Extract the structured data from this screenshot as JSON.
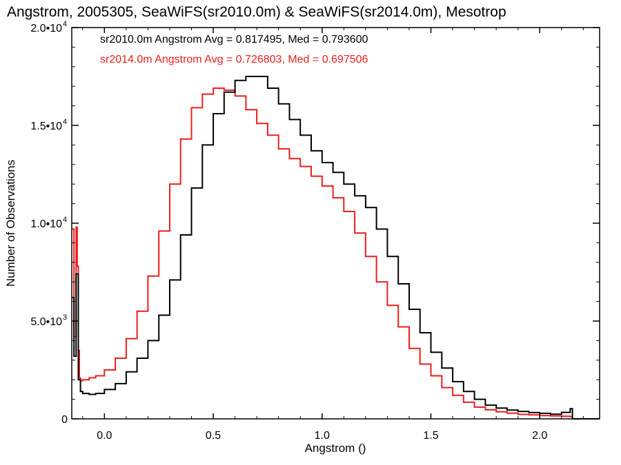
{
  "chart_data": {
    "type": "line",
    "title": "Angstrom, 2005305, SeaWiFS(sr2010.0m) & SeaWiFS(sr2014.0m), Mesotrop",
    "xlabel": "Angstrom ()",
    "ylabel": "Number of Observations",
    "xlim": [
      -0.15,
      2.275
    ],
    "ylim": [
      0,
      20000
    ],
    "x_ticks": [
      {
        "value": 0.0,
        "label": "0.0"
      },
      {
        "value": 0.5,
        "label": "0.5"
      },
      {
        "value": 1.0,
        "label": "1.0"
      },
      {
        "value": 1.5,
        "label": "1.5"
      },
      {
        "value": 2.0,
        "label": "2.0"
      }
    ],
    "y_ticks": [
      {
        "value": 0,
        "mant": "0",
        "exp": ""
      },
      {
        "value": 5000,
        "mant": "5.0•10",
        "exp": "3"
      },
      {
        "value": 10000,
        "mant": "1.0•10",
        "exp": "4"
      },
      {
        "value": 15000,
        "mant": "1.5•10",
        "exp": "4"
      },
      {
        "value": 20000,
        "mant": "2.0•10",
        "exp": "4"
      }
    ],
    "annotations": [
      {
        "text": "sr2010.0m Angstrom Avg = 0.817495, Med = 0.793600",
        "color": "#000000"
      },
      {
        "text": "sr2014.0m Angstrom Avg = 0.726803, Med = 0.697506",
        "color": "#ee1c1c"
      }
    ],
    "series": [
      {
        "color": "#000000",
        "x": [
          -0.15,
          -0.14,
          -0.13,
          -0.12,
          -0.11,
          -0.1,
          -0.07,
          -0.04,
          0.0,
          0.05,
          0.1,
          0.15,
          0.2,
          0.25,
          0.3,
          0.35,
          0.4,
          0.45,
          0.5,
          0.55,
          0.6,
          0.65,
          0.7,
          0.75,
          0.8,
          0.85,
          0.9,
          0.95,
          1.0,
          1.05,
          1.1,
          1.15,
          1.2,
          1.25,
          1.3,
          1.35,
          1.4,
          1.45,
          1.5,
          1.55,
          1.6,
          1.65,
          1.7,
          1.75,
          1.8,
          1.85,
          1.9,
          1.95,
          2.0,
          2.05,
          2.1,
          2.14,
          2.15,
          2.16,
          2.275
        ],
        "y": [
          6200,
          3200,
          7400,
          2000,
          1400,
          1300,
          1250,
          1300,
          1500,
          1800,
          2400,
          3100,
          4000,
          5300,
          7100,
          9400,
          11800,
          14000,
          15600,
          16700,
          17300,
          17500,
          17500,
          16900,
          16100,
          15300,
          14500,
          13700,
          13100,
          12600,
          12000,
          11400,
          10800,
          9700,
          8300,
          6900,
          5600,
          4400,
          3400,
          2600,
          1900,
          1400,
          1000,
          700,
          550,
          450,
          380,
          320,
          280,
          240,
          330,
          520,
          0,
          0,
          0
        ]
      },
      {
        "color": "#ee1c1c",
        "x": [
          -0.15,
          -0.14,
          -0.13,
          -0.125,
          -0.12,
          -0.115,
          -0.11,
          -0.1,
          -0.07,
          -0.04,
          0.0,
          0.05,
          0.1,
          0.15,
          0.2,
          0.25,
          0.3,
          0.35,
          0.4,
          0.45,
          0.5,
          0.55,
          0.6,
          0.65,
          0.7,
          0.75,
          0.8,
          0.85,
          0.9,
          0.95,
          1.0,
          1.05,
          1.1,
          1.15,
          1.2,
          1.25,
          1.3,
          1.35,
          1.4,
          1.45,
          1.5,
          1.55,
          1.6,
          1.65,
          1.7,
          1.75,
          1.8,
          1.85,
          1.9,
          1.95,
          2.0,
          2.05,
          2.1,
          2.14,
          2.15,
          2.16,
          2.275
        ],
        "y": [
          9700,
          4200,
          9800,
          7800,
          3500,
          2100,
          1950,
          2000,
          2100,
          2200,
          2500,
          3100,
          4100,
          5500,
          7300,
          9600,
          12000,
          14300,
          15900,
          16600,
          16900,
          16800,
          16500,
          15800,
          15100,
          14500,
          13800,
          13300,
          12900,
          12400,
          11900,
          11300,
          10600,
          9500,
          8300,
          7000,
          5800,
          4700,
          3600,
          2800,
          2200,
          1600,
          1200,
          850,
          600,
          460,
          360,
          290,
          230,
          200,
          170,
          150,
          130,
          120,
          0,
          0,
          0
        ]
      }
    ]
  }
}
